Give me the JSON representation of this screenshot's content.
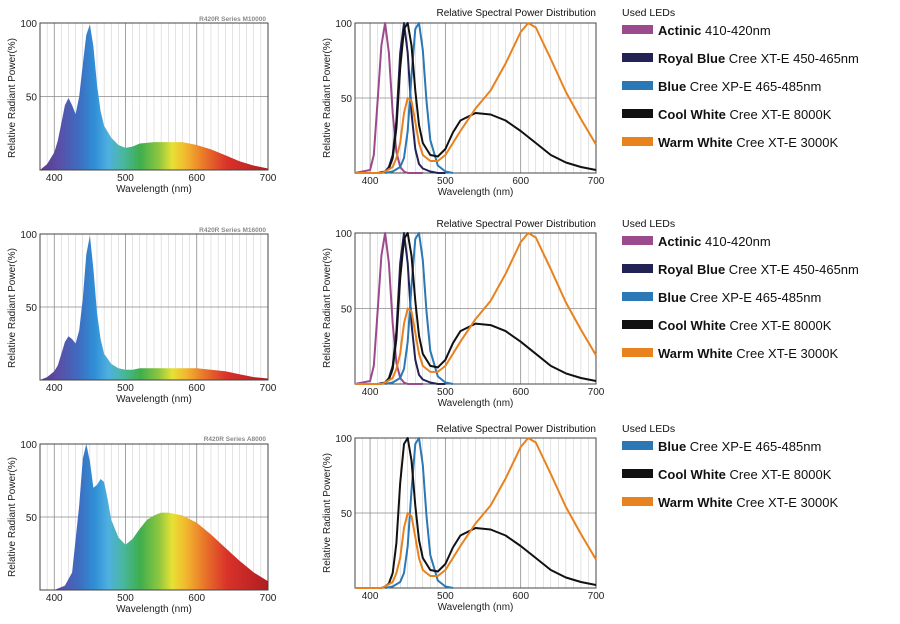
{
  "chart_data": [
    {
      "type": "area",
      "title": "R420R Series M10000",
      "xlabel": "Wavelength (nm)",
      "ylabel": "Relative Radiant Power(%)",
      "xlim": [
        380,
        700
      ],
      "ylim": [
        0,
        100
      ],
      "xticks": [
        400,
        500,
        600,
        700
      ],
      "yticks": [
        50,
        100
      ],
      "gradient": "visible-spectrum",
      "x": [
        380,
        390,
        400,
        405,
        410,
        415,
        420,
        425,
        430,
        435,
        440,
        445,
        450,
        455,
        460,
        465,
        470,
        480,
        490,
        500,
        510,
        520,
        540,
        560,
        580,
        600,
        620,
        640,
        660,
        680,
        700
      ],
      "values": [
        0,
        4,
        12,
        20,
        32,
        44,
        49,
        44,
        38,
        50,
        72,
        92,
        99,
        84,
        58,
        40,
        30,
        22,
        17,
        15,
        16,
        18,
        19,
        19,
        19,
        17,
        14,
        10,
        6,
        3,
        1
      ]
    },
    {
      "type": "area",
      "title": "R420R Series M16000",
      "xlabel": "Wavelength (nm)",
      "ylabel": "Relative Radiant Power(%)",
      "xlim": [
        380,
        700
      ],
      "ylim": [
        0,
        100
      ],
      "xticks": [
        400,
        500,
        600,
        700
      ],
      "yticks": [
        50,
        100
      ],
      "gradient": "visible-spectrum",
      "x": [
        380,
        390,
        400,
        405,
        410,
        415,
        420,
        425,
        430,
        435,
        440,
        445,
        450,
        455,
        460,
        465,
        470,
        480,
        490,
        500,
        510,
        520,
        540,
        560,
        580,
        600,
        620,
        640,
        660,
        680,
        700
      ],
      "values": [
        0,
        2,
        6,
        10,
        18,
        26,
        30,
        28,
        25,
        34,
        56,
        86,
        99,
        76,
        46,
        28,
        18,
        11,
        8,
        7,
        7,
        8,
        8,
        8,
        8,
        8,
        7,
        6,
        4,
        2,
        1
      ]
    },
    {
      "type": "area",
      "title": "R420R Series A8000",
      "xlabel": "Wavelength (nm)",
      "ylabel": "Relative Radiant Power(%)",
      "xlim": [
        380,
        700
      ],
      "ylim": [
        0,
        100
      ],
      "xticks": [
        400,
        500,
        600,
        700
      ],
      "yticks": [
        50,
        100
      ],
      "gradient": "visible-spectrum",
      "x": [
        380,
        400,
        415,
        425,
        435,
        440,
        445,
        450,
        455,
        460,
        465,
        470,
        475,
        480,
        490,
        500,
        510,
        520,
        530,
        540,
        550,
        560,
        580,
        600,
        620,
        640,
        660,
        680,
        700
      ],
      "values": [
        0,
        0,
        3,
        12,
        58,
        90,
        100,
        88,
        70,
        72,
        76,
        74,
        62,
        48,
        36,
        31,
        35,
        42,
        48,
        51,
        53,
        53,
        51,
        46,
        38,
        29,
        20,
        12,
        6
      ]
    },
    {
      "type": "line",
      "title": "Relative Spectral Power Distribution",
      "xlabel": "Wavelength (nm)",
      "ylabel": "Relative Radiant Power(%)",
      "xlim": [
        380,
        700
      ],
      "ylim": [
        0,
        100
      ],
      "xticks": [
        400,
        500,
        600,
        700
      ],
      "yticks": [
        50,
        100
      ],
      "legend_title": "Used LEDs",
      "series": [
        {
          "key": "actinic",
          "color": "#9b4a8e",
          "x": [
            380,
            400,
            405,
            410,
            415,
            420,
            425,
            430,
            435,
            440,
            445,
            450,
            460,
            470
          ],
          "values": [
            0,
            2,
            12,
            48,
            85,
            100,
            80,
            40,
            14,
            4,
            1,
            0,
            0,
            0
          ]
        },
        {
          "key": "royal_blue",
          "color": "#222255",
          "x": [
            410,
            420,
            425,
            430,
            435,
            440,
            445,
            450,
            455,
            460,
            465,
            470,
            480,
            490,
            500
          ],
          "values": [
            0,
            1,
            4,
            12,
            35,
            80,
            100,
            80,
            40,
            16,
            6,
            3,
            1,
            0,
            0
          ]
        },
        {
          "key": "blue",
          "color": "#2a78b5",
          "x": [
            420,
            430,
            440,
            445,
            450,
            455,
            460,
            465,
            470,
            475,
            480,
            490,
            500,
            510
          ],
          "values": [
            0,
            1,
            4,
            10,
            28,
            65,
            96,
            100,
            82,
            48,
            22,
            5,
            1,
            0
          ]
        },
        {
          "key": "cool_white",
          "color": "#111111",
          "x": [
            380,
            415,
            420,
            425,
            430,
            435,
            440,
            445,
            450,
            455,
            460,
            465,
            470,
            480,
            490,
            500,
            510,
            520,
            540,
            560,
            580,
            600,
            620,
            640,
            660,
            680,
            700
          ],
          "values": [
            0,
            0,
            1,
            3,
            10,
            30,
            70,
            96,
            100,
            85,
            55,
            32,
            20,
            12,
            11,
            16,
            27,
            35,
            40,
            39,
            35,
            28,
            20,
            12,
            7,
            4,
            2
          ]
        },
        {
          "key": "warm_white",
          "color": "#e8821e",
          "x": [
            380,
            415,
            420,
            430,
            435,
            440,
            445,
            450,
            455,
            460,
            465,
            470,
            480,
            490,
            500,
            520,
            540,
            560,
            580,
            600,
            610,
            620,
            640,
            660,
            680,
            700
          ],
          "values": [
            0,
            0,
            1,
            4,
            10,
            20,
            40,
            50,
            48,
            34,
            20,
            12,
            8,
            8,
            12,
            28,
            43,
            55,
            73,
            94,
            100,
            97,
            76,
            54,
            36,
            19
          ]
        }
      ],
      "legends": [
        [
          "actinic",
          "royal_blue",
          "blue",
          "cool_white",
          "warm_white"
        ],
        [
          "actinic",
          "royal_blue",
          "blue",
          "cool_white",
          "warm_white"
        ],
        [
          "blue",
          "cool_white",
          "warm_white"
        ]
      ]
    }
  ],
  "leds": {
    "actinic": {
      "name": "Actinic",
      "desc": " 410-420nm",
      "color": "#9b4a8e"
    },
    "royal_blue": {
      "name": "Royal Blue",
      "desc": " Cree XT-E 450-465nm",
      "color": "#222255"
    },
    "blue": {
      "name": "Blue",
      "desc": " Cree XP-E 465-485nm",
      "color": "#2a78b5"
    },
    "cool_white": {
      "name": "Cool White",
      "desc": " Cree XT-E 8000K",
      "color": "#111111"
    },
    "warm_white": {
      "name": "Warm White",
      "desc": " Cree XT-E 3000K",
      "color": "#e8821e"
    }
  }
}
